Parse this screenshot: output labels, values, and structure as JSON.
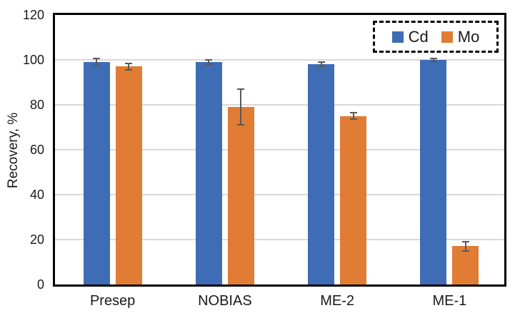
{
  "chart_data": {
    "type": "bar",
    "title": "",
    "xlabel": "",
    "ylabel": "Recovery, %",
    "categories": [
      "Presep",
      "NOBIAS",
      "ME-2",
      "ME-1"
    ],
    "series": [
      {
        "name": "Cd",
        "color": "#3E6DB5",
        "values": [
          99,
          99,
          98,
          100
        ],
        "errors": [
          1.5,
          1,
          1,
          0.5
        ]
      },
      {
        "name": "Mo",
        "color": "#E17C34",
        "values": [
          97,
          79,
          75,
          17
        ],
        "errors": [
          1.5,
          8,
          1.5,
          2
        ]
      }
    ],
    "ylim": [
      0,
      120
    ],
    "yticks": [
      0,
      20,
      40,
      60,
      80,
      100,
      120
    ],
    "grid": true,
    "gridline_color": "#D9D9D9",
    "axis_color": "#000000",
    "error_bar_color": "#595959",
    "legend": {
      "position": "top-right",
      "border_style": "dashed",
      "labels": [
        "Cd",
        "Mo"
      ]
    }
  }
}
